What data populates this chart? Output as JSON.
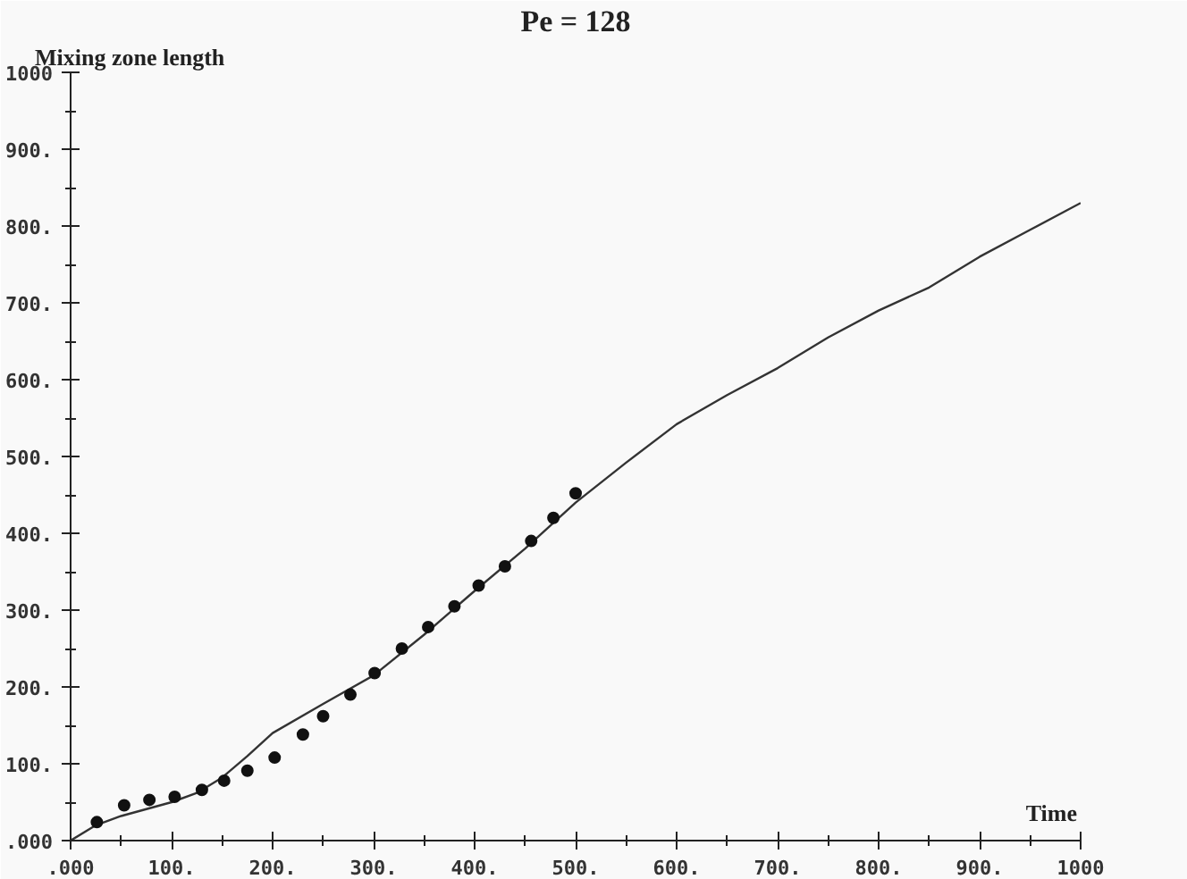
{
  "chart_data": {
    "type": "line",
    "title": "Pe = 128",
    "xlabel": "Time",
    "ylabel": "Mixing zone length",
    "xlim": [
      0,
      1000
    ],
    "ylim": [
      0,
      1000
    ],
    "xticks": [
      {
        "value": 0,
        "label": ".000"
      },
      {
        "value": 100,
        "label": "100."
      },
      {
        "value": 200,
        "label": "200."
      },
      {
        "value": 300,
        "label": "300."
      },
      {
        "value": 400,
        "label": "400."
      },
      {
        "value": 500,
        "label": "500."
      },
      {
        "value": 600,
        "label": "600."
      },
      {
        "value": 700,
        "label": "700."
      },
      {
        "value": 800,
        "label": "800."
      },
      {
        "value": 900,
        "label": "900."
      },
      1000
    ],
    "yticks": [
      {
        "value": 0,
        "label": ".000"
      },
      {
        "value": 100,
        "label": "100."
      },
      {
        "value": 200,
        "label": "200."
      },
      {
        "value": 300,
        "label": "300."
      },
      {
        "value": 400,
        "label": "400."
      },
      {
        "value": 500,
        "label": "500."
      },
      {
        "value": 600,
        "label": "600."
      },
      {
        "value": 700,
        "label": "700."
      },
      {
        "value": 800,
        "label": "800."
      },
      {
        "value": 900,
        "label": "900."
      },
      1000
    ],
    "grid": false,
    "series": [
      {
        "color": "#333333",
        "line_style": "solid",
        "marker": "none",
        "x": [
          0,
          25,
          50,
          100,
          125,
          150,
          175,
          200,
          250,
          300,
          350,
          400,
          450,
          500,
          550,
          600,
          650,
          700,
          750,
          800,
          850,
          900,
          950,
          1000
        ],
        "values": [
          0,
          20,
          32,
          50,
          62,
          82,
          110,
          140,
          178,
          215,
          268,
          325,
          380,
          440,
          492,
          542,
          580,
          615,
          655,
          690,
          720,
          760,
          795,
          830
        ]
      },
      {
        "type": "scatter",
        "color": "#111111",
        "marker": "circle",
        "x": [
          26,
          53,
          78,
          103,
          130,
          152,
          175,
          202,
          230,
          250,
          277,
          301,
          328,
          354,
          380,
          404,
          430,
          456,
          478,
          500
        ],
        "values": [
          24,
          46,
          53,
          57,
          66,
          78,
          91,
          108,
          138,
          162,
          190,
          218,
          250,
          278,
          305,
          332,
          357,
          390,
          420,
          452
        ]
      }
    ]
  }
}
